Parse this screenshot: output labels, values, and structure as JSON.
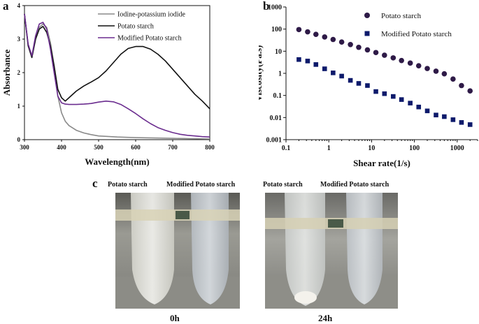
{
  "chart_data": [
    {
      "panel": "a",
      "type": "line",
      "xlabel": "Wavelength(nm)",
      "ylabel": "Absorbance",
      "xlim": [
        300,
        800
      ],
      "ylim": [
        0,
        4
      ],
      "xticks": [
        "300",
        "400",
        "500",
        "600",
        "700",
        "800"
      ],
      "yticks": [
        "0",
        "1",
        "2",
        "3",
        "4"
      ],
      "legend_position": "top-right",
      "series": [
        {
          "name": "Iodine-potassium iodide",
          "color": "#8a8a8a",
          "x": [
            300,
            310,
            320,
            330,
            340,
            350,
            360,
            370,
            380,
            390,
            400,
            410,
            420,
            440,
            460,
            480,
            500,
            550,
            600,
            650,
            700,
            750,
            800
          ],
          "y": [
            3.75,
            2.8,
            2.45,
            3.0,
            3.35,
            3.45,
            3.35,
            2.9,
            2.2,
            1.3,
            0.8,
            0.55,
            0.42,
            0.28,
            0.2,
            0.15,
            0.11,
            0.08,
            0.06,
            0.05,
            0.04,
            0.03,
            0.02
          ]
        },
        {
          "name": "Potato starch",
          "color": "#111111",
          "x": [
            300,
            310,
            320,
            330,
            340,
            350,
            360,
            370,
            380,
            390,
            400,
            410,
            420,
            440,
            460,
            480,
            500,
            520,
            540,
            560,
            580,
            600,
            620,
            640,
            660,
            680,
            700,
            720,
            740,
            760,
            780,
            800
          ],
          "y": [
            3.75,
            2.8,
            2.45,
            3.0,
            3.3,
            3.38,
            3.2,
            2.8,
            2.2,
            1.5,
            1.25,
            1.15,
            1.25,
            1.45,
            1.6,
            1.72,
            1.85,
            2.05,
            2.3,
            2.55,
            2.72,
            2.78,
            2.78,
            2.7,
            2.55,
            2.35,
            2.1,
            1.85,
            1.6,
            1.35,
            1.15,
            0.92
          ]
        },
        {
          "name": "Modified Potato starch",
          "color": "#6b2d8f",
          "x": [
            300,
            310,
            320,
            330,
            340,
            350,
            360,
            370,
            380,
            390,
            400,
            410,
            420,
            440,
            460,
            480,
            500,
            520,
            540,
            560,
            580,
            600,
            620,
            640,
            660,
            680,
            700,
            720,
            740,
            760,
            780,
            800
          ],
          "y": [
            3.75,
            2.85,
            2.5,
            3.1,
            3.45,
            3.5,
            3.3,
            2.7,
            2.0,
            1.3,
            1.1,
            1.06,
            1.05,
            1.05,
            1.06,
            1.08,
            1.12,
            1.15,
            1.13,
            1.05,
            0.92,
            0.78,
            0.62,
            0.48,
            0.36,
            0.28,
            0.21,
            0.16,
            0.13,
            0.11,
            0.09,
            0.08
          ]
        }
      ]
    },
    {
      "panel": "b",
      "type": "scatter",
      "xlabel": "Shear rate(1/s)",
      "ylabel": "Viscosity(Pa.s)",
      "xscale": "log",
      "yscale": "log",
      "xlim": [
        0.1,
        3000
      ],
      "ylim": [
        0.001,
        1000
      ],
      "xticks": [
        "0.1",
        "1",
        "10",
        "100",
        "1000"
      ],
      "yticks": [
        "0.001",
        "0.01",
        "0.1",
        "1",
        "10",
        "100",
        "1000"
      ],
      "legend_position": "top-right",
      "series": [
        {
          "name": "Potato starch",
          "marker": "circle",
          "color": "#2e1a47",
          "x": [
            0.2,
            0.32,
            0.5,
            0.8,
            1.26,
            2,
            3.2,
            5,
            8,
            12.6,
            20,
            32,
            50,
            80,
            126,
            200,
            320,
            500,
            800,
            1260,
            2000
          ],
          "y": [
            95,
            75,
            58,
            44,
            34,
            26,
            20,
            15,
            11.5,
            8.7,
            6.6,
            5.0,
            3.8,
            2.9,
            2.2,
            1.65,
            1.25,
            0.95,
            0.55,
            0.28,
            0.16
          ]
        },
        {
          "name": "Modified Potato starch",
          "marker": "square",
          "color": "#0d1a6b",
          "x": [
            0.2,
            0.32,
            0.5,
            0.8,
            1.26,
            2,
            3.2,
            5,
            8,
            12.6,
            20,
            32,
            50,
            80,
            126,
            200,
            320,
            500,
            800,
            1260,
            2000
          ],
          "y": [
            4.2,
            3.6,
            2.5,
            1.6,
            1.05,
            0.75,
            0.48,
            0.35,
            0.28,
            0.15,
            0.12,
            0.09,
            0.065,
            0.045,
            0.03,
            0.02,
            0.013,
            0.011,
            0.008,
            0.006,
            0.0048
          ]
        }
      ]
    }
  ],
  "panel_c": {
    "letter": "c",
    "labels": [
      "Potato starch",
      "Modified Potato starch",
      "Potato starch",
      "Modified Potato starch"
    ],
    "times": [
      "0h",
      "24h"
    ]
  },
  "panel_letters": {
    "a": "a",
    "b": "b"
  }
}
